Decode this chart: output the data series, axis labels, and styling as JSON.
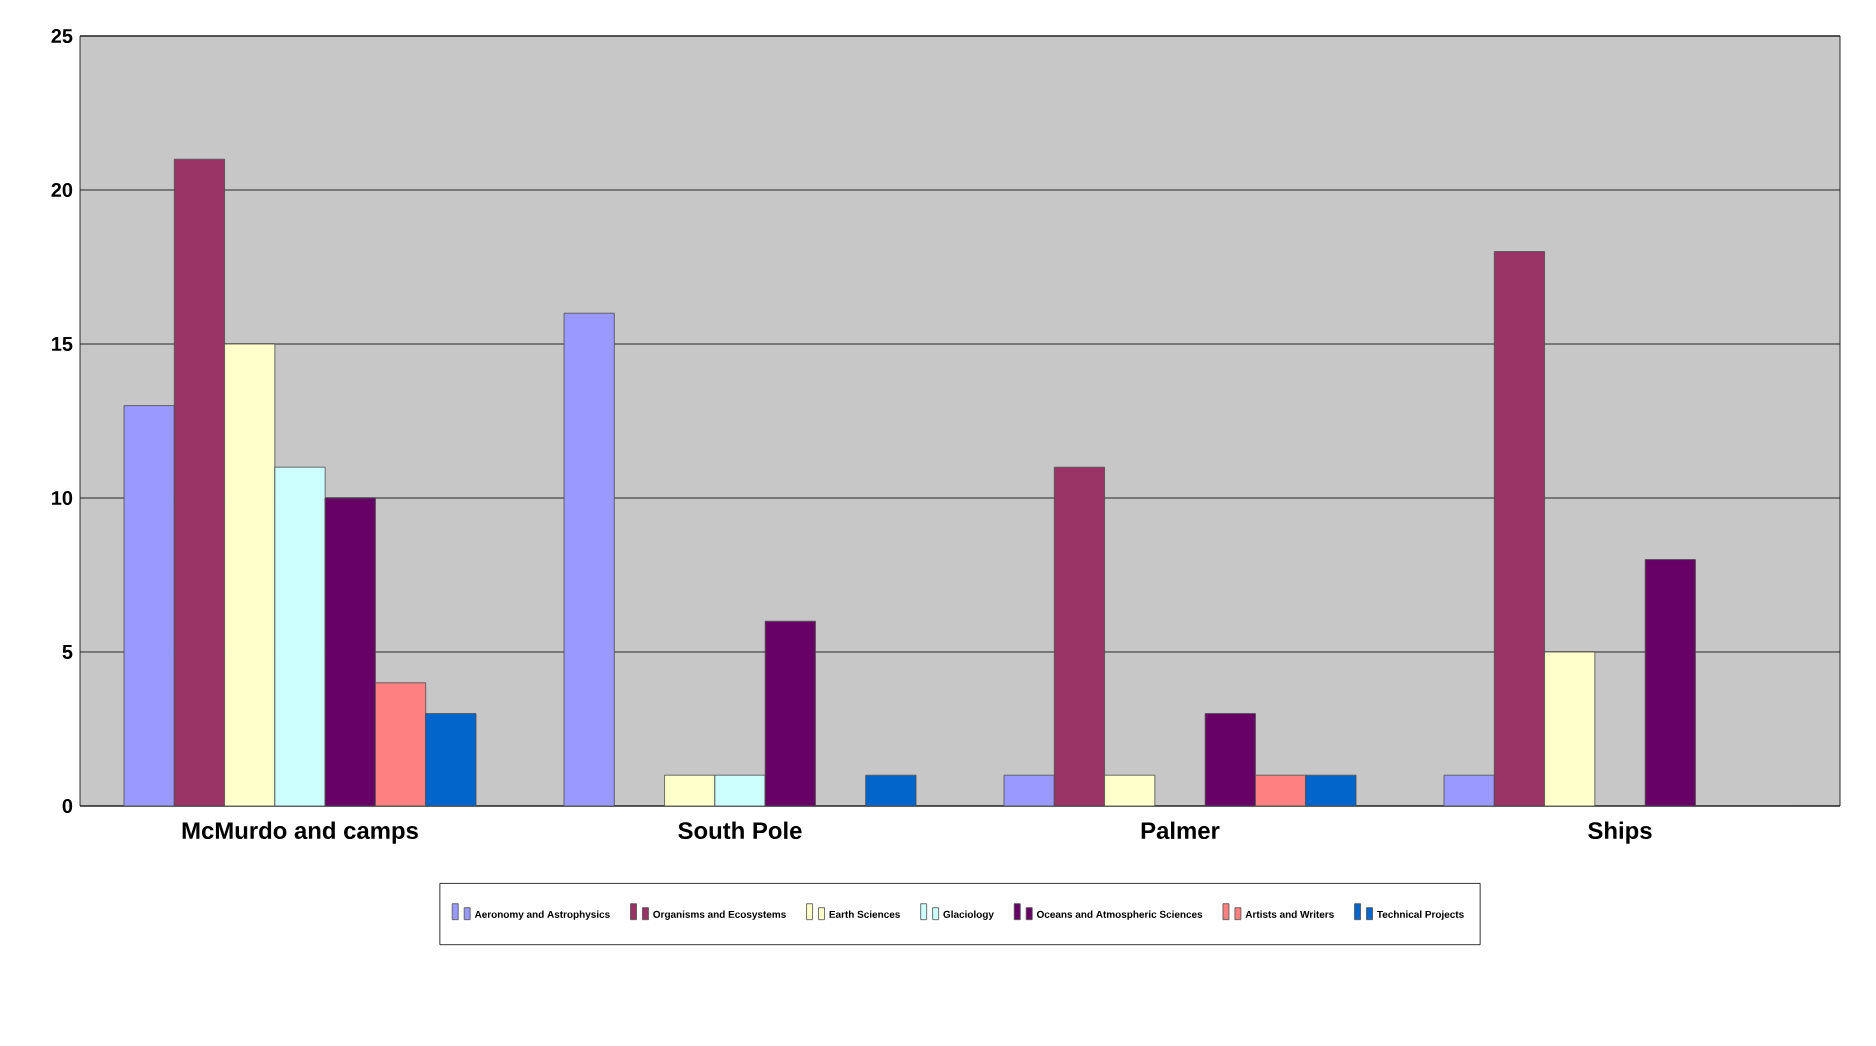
{
  "chart_data": {
    "type": "bar",
    "categories": [
      "McMurdo and camps",
      "South Pole",
      "Palmer",
      "Ships"
    ],
    "series": [
      {
        "name": "Aeronomy and Astrophysics",
        "color": "#9999ff",
        "values": [
          13,
          16,
          1,
          1
        ]
      },
      {
        "name": "Organisms and Ecosystems",
        "color": "#993366",
        "values": [
          21,
          0,
          11,
          18
        ]
      },
      {
        "name": "Earth Sciences",
        "color": "#ffffcc",
        "values": [
          15,
          1,
          1,
          5
        ]
      },
      {
        "name": "Glaciology",
        "color": "#ccffff",
        "values": [
          11,
          1,
          0,
          0
        ]
      },
      {
        "name": "Oceans and Atmospheric Sciences",
        "color": "#660066",
        "values": [
          10,
          6,
          3,
          8
        ]
      },
      {
        "name": "Artists and Writers",
        "color": "#ff8080",
        "values": [
          4,
          0,
          1,
          0
        ]
      },
      {
        "name": "Technical Projects",
        "color": "#0066cc",
        "values": [
          3,
          1,
          1,
          0
        ]
      }
    ],
    "ylim": [
      0,
      25
    ],
    "yticks": [
      0,
      5,
      10,
      15,
      20,
      25
    ],
    "grid": "y",
    "legend": "bottom"
  }
}
